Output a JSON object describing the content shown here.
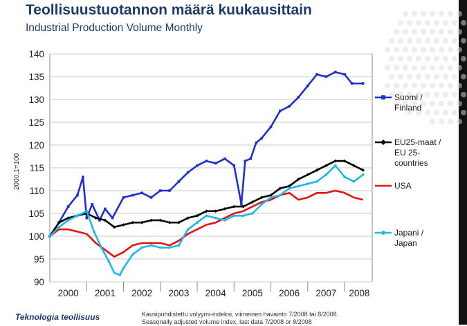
{
  "title": "Teollisuustuotannon määrä kuukausittain",
  "subtitle": "Industrial Production Volume Monthly",
  "footnote_line1": "Kausipuhdistettu volyymi-indeksi, viimeinen havainto 7/2008 tai 8/2008.",
  "footnote_line2": "Seasonally adjusted volume index, last data 7/2008 or 8/2008",
  "logo": "Teknologia teollisuus",
  "colors": {
    "finland": "#1f2fd0",
    "eu25": "#000000",
    "usa": "#e4140c",
    "japan": "#1fb8e8",
    "title": "#1f3a6a"
  },
  "chart_data": {
    "type": "line",
    "ylabel": "2000,1=100",
    "ylim": [
      90,
      140
    ],
    "yticks": [
      90,
      95,
      100,
      105,
      110,
      115,
      120,
      125,
      130,
      135,
      140
    ],
    "xlim": [
      2000.0,
      2008.75
    ],
    "xticks": [
      {
        "label": "2000",
        "x": 2000.5
      },
      {
        "label": "2001",
        "x": 2001.5
      },
      {
        "label": "2002",
        "x": 2002.5
      },
      {
        "label": "2003",
        "x": 2003.5
      },
      {
        "label": "2004",
        "x": 2004.5
      },
      {
        "label": "2005",
        "x": 2005.5
      },
      {
        "label": "2006",
        "x": 2006.5
      },
      {
        "label": "2007",
        "x": 2007.5
      },
      {
        "label": "2008",
        "x": 2008.4
      }
    ],
    "year_dividers": [
      2001,
      2002,
      2003,
      2004,
      2005,
      2006,
      2007,
      2008
    ],
    "grid": true,
    "legend_position": "right",
    "series": [
      {
        "key": "finland",
        "name": "Suomi / Finland",
        "legend_lines": [
          "Suomi /",
          "Finland"
        ],
        "color": "#1f2fd0",
        "marker": "square",
        "x": [
          2000.0,
          2000.25,
          2000.5,
          2000.75,
          2000.9,
          2001.0,
          2001.15,
          2001.35,
          2001.5,
          2001.7,
          2002.0,
          2002.25,
          2002.5,
          2002.75,
          2003.0,
          2003.25,
          2003.5,
          2003.75,
          2004.0,
          2004.25,
          2004.5,
          2004.75,
          2005.0,
          2005.2,
          2005.3,
          2005.45,
          2005.6,
          2005.75,
          2006.0,
          2006.25,
          2006.5,
          2006.75,
          2007.0,
          2007.25,
          2007.5,
          2007.75,
          2008.0,
          2008.2,
          2008.5
        ],
        "y": [
          100.0,
          103.0,
          106.5,
          109.0,
          113.0,
          104.0,
          107.0,
          103.5,
          106.0,
          104.0,
          108.5,
          109.0,
          109.5,
          108.5,
          110.0,
          110.0,
          112.0,
          114.0,
          115.5,
          116.5,
          116.0,
          117.0,
          115.5,
          107.0,
          116.5,
          117.0,
          120.5,
          121.5,
          124.0,
          127.5,
          128.5,
          130.5,
          133.0,
          135.5,
          135.0,
          136.0,
          135.5,
          133.5,
          133.5
        ]
      },
      {
        "key": "eu25",
        "name": "EU25-maat / EU 25-countries",
        "legend_lines": [
          "EU25-maat /",
          "EU 25-",
          "countries"
        ],
        "color": "#000000",
        "marker": "diamond",
        "x": [
          2000.0,
          2000.25,
          2000.5,
          2000.75,
          2001.0,
          2001.25,
          2001.5,
          2001.75,
          2002.0,
          2002.25,
          2002.5,
          2002.75,
          2003.0,
          2003.25,
          2003.5,
          2003.75,
          2004.0,
          2004.25,
          2004.5,
          2004.75,
          2005.0,
          2005.25,
          2005.5,
          2005.75,
          2006.0,
          2006.25,
          2006.5,
          2006.75,
          2007.0,
          2007.25,
          2007.5,
          2007.75,
          2008.0,
          2008.25,
          2008.5
        ],
        "y": [
          100.0,
          103.0,
          104.0,
          104.5,
          105.0,
          104.0,
          103.5,
          102.0,
          102.5,
          103.0,
          103.0,
          103.5,
          103.5,
          103.0,
          103.0,
          104.0,
          104.5,
          105.5,
          105.5,
          106.0,
          106.5,
          106.5,
          107.5,
          108.5,
          109.0,
          110.5,
          111.0,
          112.5,
          113.5,
          114.5,
          115.5,
          116.5,
          116.5,
          115.5,
          114.5
        ]
      },
      {
        "key": "usa",
        "name": "USA",
        "legend_lines": [
          "USA"
        ],
        "color": "#e4140c",
        "marker": "none",
        "x": [
          2000.0,
          2000.25,
          2000.5,
          2000.75,
          2001.0,
          2001.25,
          2001.5,
          2001.75,
          2002.0,
          2002.25,
          2002.5,
          2002.75,
          2003.0,
          2003.25,
          2003.5,
          2003.75,
          2004.0,
          2004.25,
          2004.5,
          2004.75,
          2005.0,
          2005.25,
          2005.5,
          2005.75,
          2006.0,
          2006.25,
          2006.5,
          2006.75,
          2007.0,
          2007.25,
          2007.5,
          2007.75,
          2008.0,
          2008.25,
          2008.5
        ],
        "y": [
          100.0,
          101.5,
          101.5,
          101.0,
          100.5,
          98.5,
          97.0,
          95.5,
          96.5,
          98.0,
          98.5,
          98.5,
          98.5,
          98.0,
          99.0,
          100.5,
          101.5,
          102.5,
          103.0,
          104.0,
          105.0,
          105.5,
          106.5,
          107.5,
          108.0,
          109.0,
          109.5,
          108.0,
          108.5,
          109.5,
          109.5,
          110.0,
          109.5,
          108.5,
          108.0
        ]
      },
      {
        "key": "japan",
        "name": "Japani / Japan",
        "legend_lines": [
          "Japani /",
          "Japan"
        ],
        "color": "#1fb8e8",
        "marker": "circle",
        "x": [
          2000.0,
          2000.25,
          2000.5,
          2000.75,
          2001.0,
          2001.2,
          2001.4,
          2001.6,
          2001.75,
          2001.9,
          2002.0,
          2002.25,
          2002.5,
          2002.75,
          2003.0,
          2003.25,
          2003.5,
          2003.75,
          2004.0,
          2004.25,
          2004.5,
          2004.75,
          2005.0,
          2005.25,
          2005.5,
          2005.75,
          2006.0,
          2006.25,
          2006.5,
          2006.75,
          2007.0,
          2007.25,
          2007.5,
          2007.75,
          2008.0,
          2008.25,
          2008.5
        ],
        "y": [
          100.0,
          102.0,
          103.5,
          104.5,
          105.5,
          101.0,
          97.5,
          94.5,
          92.0,
          91.5,
          93.0,
          96.0,
          97.5,
          98.0,
          97.5,
          97.5,
          98.0,
          101.5,
          103.0,
          104.5,
          104.0,
          103.5,
          104.5,
          104.5,
          105.0,
          107.0,
          108.5,
          109.0,
          110.5,
          111.0,
          111.5,
          112.0,
          113.5,
          115.5,
          113.0,
          112.0,
          113.5
        ]
      }
    ]
  }
}
